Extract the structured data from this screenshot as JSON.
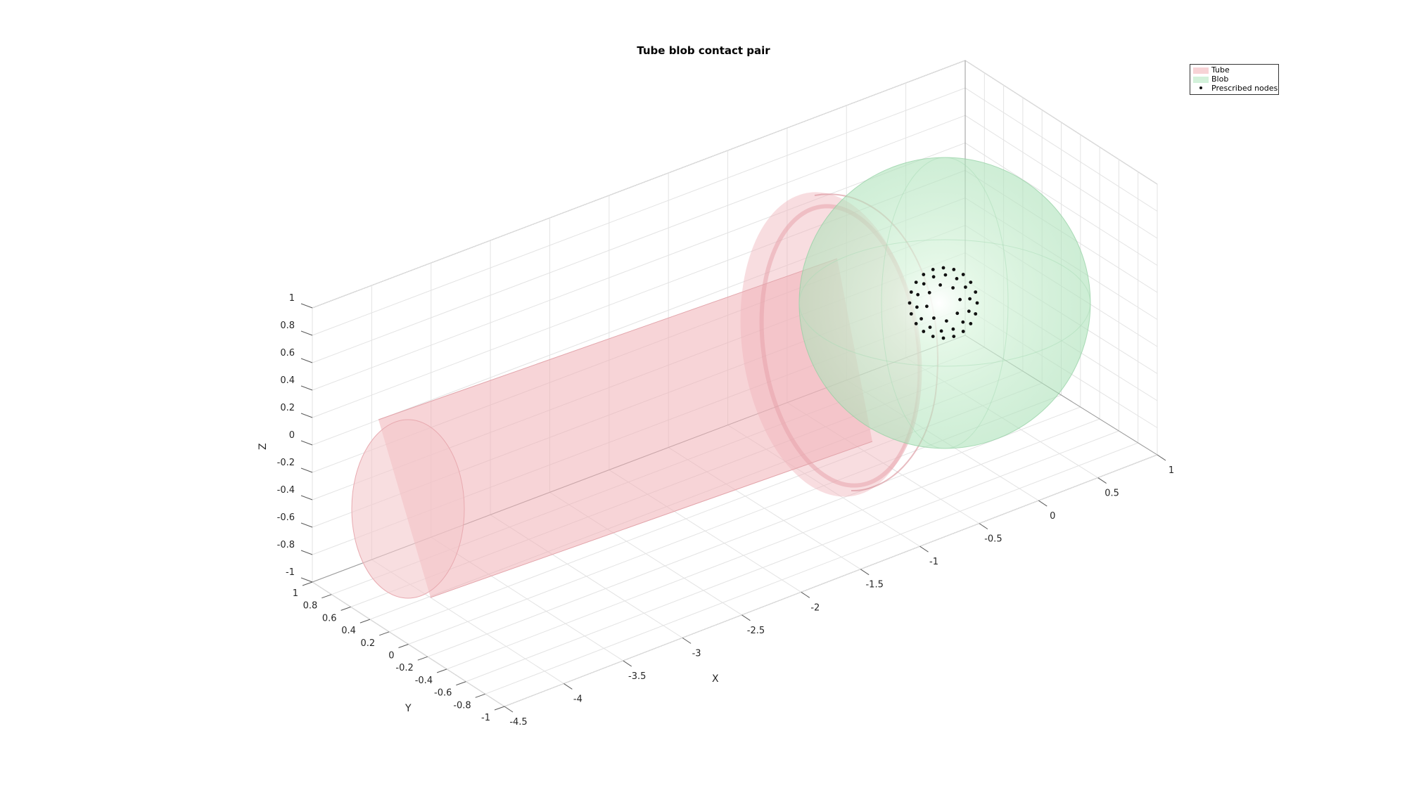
{
  "chart_data": {
    "type": "3d-surface",
    "title": "Tube blob contact pair",
    "xlabel": "X",
    "ylabel": "Y",
    "zlabel": "Z",
    "xlim": [
      -4.5,
      1
    ],
    "ylim": [
      -1,
      1
    ],
    "zlim": [
      -1,
      1
    ],
    "x_ticks": [
      "-4.5",
      "-4",
      "-3.5",
      "-3",
      "-2.5",
      "-2",
      "-1.5",
      "-1",
      "-0.5",
      "0",
      "0.5",
      "1"
    ],
    "y_ticks": [
      "-1",
      "-0.8",
      "-0.6",
      "-0.4",
      "-0.2",
      "0",
      "0.2",
      "0.4",
      "0.6",
      "0.8",
      "1"
    ],
    "z_ticks": [
      "-1",
      "-0.8",
      "-0.6",
      "-0.4",
      "-0.2",
      "0",
      "0.2",
      "0.4",
      "0.6",
      "0.8",
      "1"
    ],
    "grid": true,
    "legend_position": "top-right",
    "series": [
      {
        "name": "Tube",
        "color": "#f2b8bd",
        "kind": "surface"
      },
      {
        "name": "Blob",
        "color": "#b8e8c2",
        "kind": "surface"
      },
      {
        "name": "Prescribed nodes",
        "color": "#111111",
        "kind": "points"
      }
    ]
  }
}
